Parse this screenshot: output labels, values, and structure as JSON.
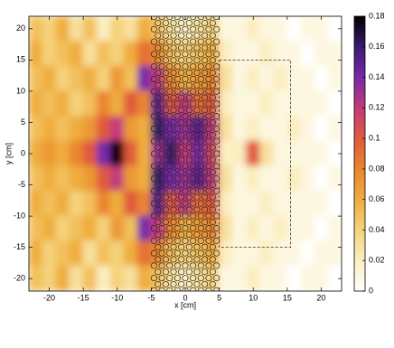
{
  "chart_data": {
    "type": "heatmap",
    "xlabel": "x [cm]",
    "ylabel": "y [cm]",
    "xlim": [
      -23,
      23
    ],
    "ylim": [
      -22,
      22
    ],
    "xticks": [
      -20,
      -15,
      -10,
      -5,
      0,
      5,
      10,
      15,
      20
    ],
    "yticks": [
      -20,
      -15,
      -10,
      -5,
      0,
      5,
      10,
      15,
      20
    ],
    "clim": [
      0,
      0.18
    ],
    "cticks": [
      0,
      0.02,
      0.04,
      0.06,
      0.08,
      0.1,
      0.12,
      0.14,
      0.16,
      0.18
    ],
    "colormap": [
      "#ffffff",
      "#fbeec0",
      "#f5d27a",
      "#efad3e",
      "#e9862e",
      "#e05a3c",
      "#c23a7a",
      "#7a2aa8",
      "#3a1a70",
      "#000000"
    ],
    "x": [
      -22,
      -20,
      -18,
      -16,
      -14,
      -12,
      -10,
      -8,
      -6,
      -4,
      -2,
      0,
      2,
      4,
      6,
      8,
      10,
      12,
      14,
      16,
      18,
      20,
      22
    ],
    "y": [
      20,
      16,
      12,
      8,
      4,
      0,
      -4,
      -8,
      -12,
      -16,
      -20
    ],
    "z": [
      [
        0.05,
        0.04,
        0.06,
        0.03,
        0.05,
        0.02,
        0.04,
        0.03,
        0.06,
        0.05,
        0.03,
        0.02,
        0.03,
        0.04,
        0.01,
        0.01,
        0.02,
        0.01,
        0.01,
        0,
        0.01,
        0.01,
        0
      ],
      [
        0.06,
        0.04,
        0.05,
        0.06,
        0.03,
        0.05,
        0.04,
        0.06,
        0.09,
        0.08,
        0.05,
        0.04,
        0.05,
        0.06,
        0.02,
        0.01,
        0.01,
        0.02,
        0.01,
        0.01,
        0,
        0.01,
        0.01
      ],
      [
        0.05,
        0.06,
        0.04,
        0.05,
        0.06,
        0.04,
        0.07,
        0.05,
        0.14,
        0.12,
        0.08,
        0.06,
        0.07,
        0.08,
        0.03,
        0.01,
        0.02,
        0.01,
        0.02,
        0.01,
        0.01,
        0,
        0.01
      ],
      [
        0.06,
        0.05,
        0.06,
        0.04,
        0.05,
        0.08,
        0.06,
        0.1,
        0.08,
        0.15,
        0.1,
        0.12,
        0.09,
        0.1,
        0.02,
        0.01,
        0.01,
        0.02,
        0.01,
        0.01,
        0.01,
        0.01,
        0
      ],
      [
        0.05,
        0.06,
        0.05,
        0.06,
        0.07,
        0.1,
        0.12,
        0.07,
        0.06,
        0.16,
        0.14,
        0.13,
        0.15,
        0.12,
        0.03,
        0.01,
        0.02,
        0.01,
        0.01,
        0.02,
        0.01,
        0,
        0.01
      ],
      [
        0.06,
        0.07,
        0.06,
        0.08,
        0.1,
        0.14,
        0.18,
        0.1,
        0.06,
        0.13,
        0.16,
        0.12,
        0.14,
        0.11,
        0.02,
        0.02,
        0.1,
        0.03,
        0.01,
        0.01,
        0.01,
        0.01,
        0
      ],
      [
        0.05,
        0.06,
        0.05,
        0.06,
        0.07,
        0.1,
        0.12,
        0.07,
        0.06,
        0.16,
        0.14,
        0.13,
        0.15,
        0.12,
        0.03,
        0.01,
        0.02,
        0.01,
        0.01,
        0.02,
        0.01,
        0,
        0.01
      ],
      [
        0.06,
        0.05,
        0.06,
        0.04,
        0.05,
        0.08,
        0.06,
        0.1,
        0.08,
        0.15,
        0.1,
        0.12,
        0.09,
        0.1,
        0.02,
        0.01,
        0.01,
        0.02,
        0.01,
        0.01,
        0.01,
        0.01,
        0
      ],
      [
        0.05,
        0.06,
        0.04,
        0.05,
        0.06,
        0.04,
        0.07,
        0.05,
        0.14,
        0.12,
        0.08,
        0.06,
        0.07,
        0.08,
        0.03,
        0.01,
        0.02,
        0.01,
        0.02,
        0.01,
        0.01,
        0,
        0.01
      ],
      [
        0.06,
        0.04,
        0.05,
        0.06,
        0.03,
        0.05,
        0.04,
        0.06,
        0.09,
        0.08,
        0.05,
        0.04,
        0.05,
        0.06,
        0.02,
        0.01,
        0.01,
        0.02,
        0.01,
        0.01,
        0,
        0.01,
        0.01
      ],
      [
        0.05,
        0.04,
        0.06,
        0.03,
        0.05,
        0.02,
        0.04,
        0.03,
        0.06,
        0.05,
        0.03,
        0.02,
        0.03,
        0.04,
        0.01,
        0.01,
        0.02,
        0.01,
        0.01,
        0,
        0.01,
        0.01,
        0
      ]
    ]
  }
}
